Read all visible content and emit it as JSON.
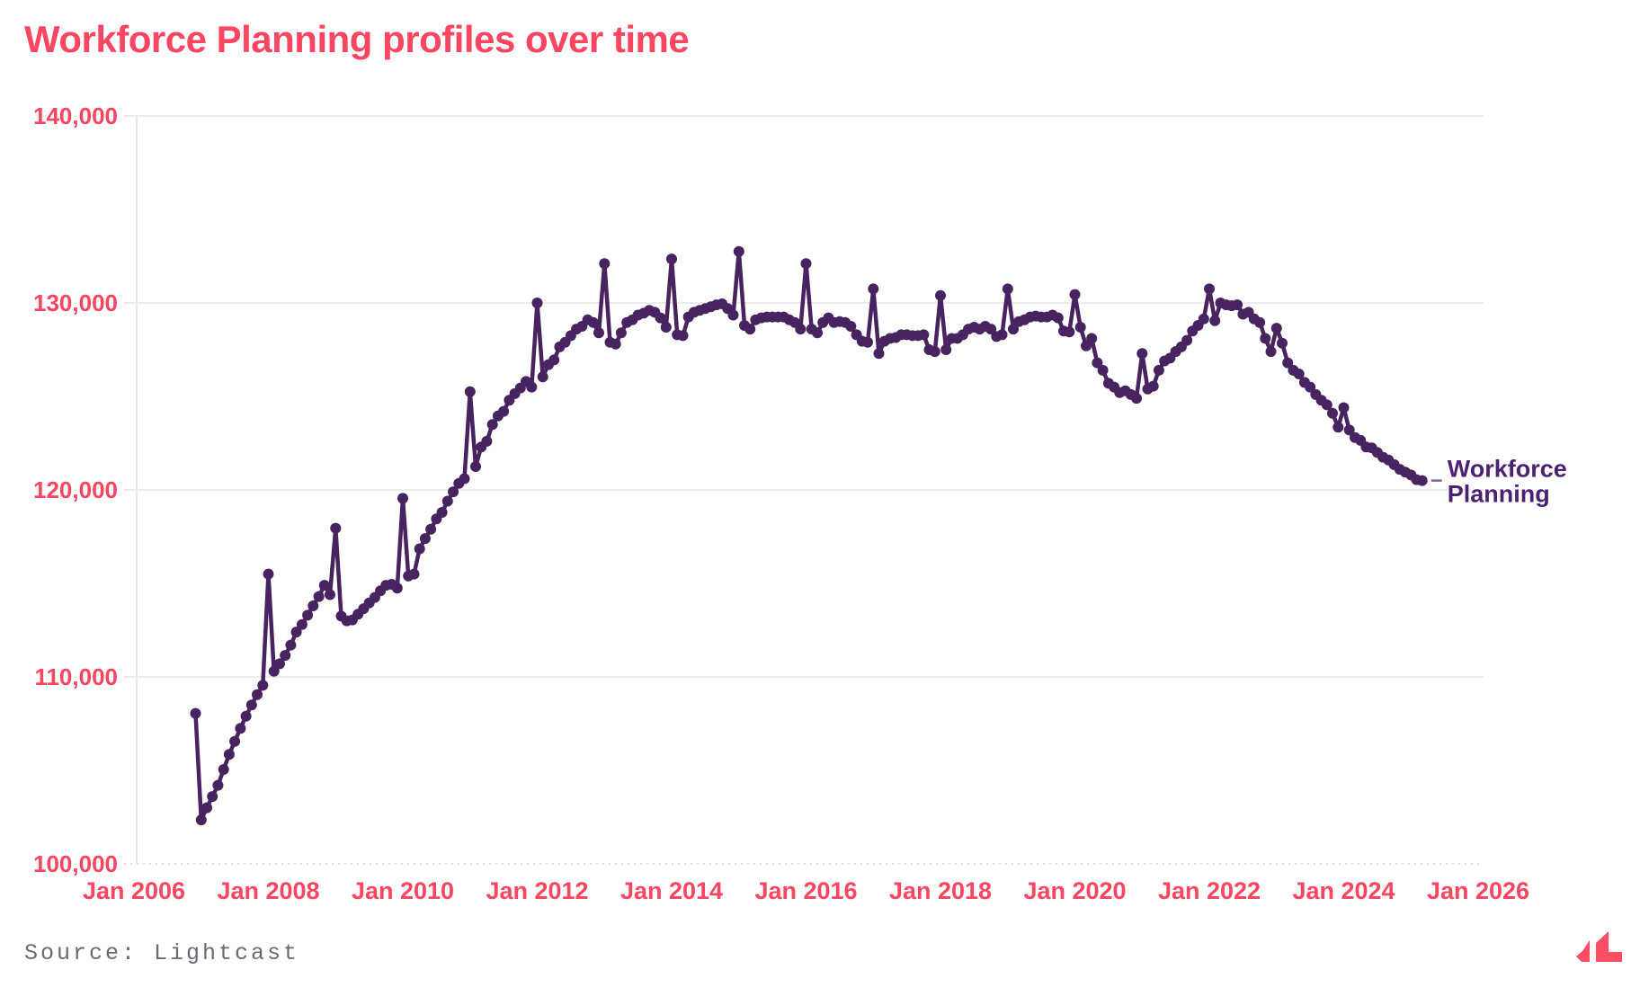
{
  "title": "Workforce Planning profiles over time",
  "source": "Source: Lightcast",
  "series_label": {
    "line1": "Workforce",
    "line2": "Planning"
  },
  "colors": {
    "background": "#FFFFFF",
    "title": "#FA4660",
    "axis_text": "#FA4660",
    "gridline": "#ECECEC",
    "gridline_dotted": "#E0E0E0",
    "axis_line": "#E8E8E8",
    "line": "#472460",
    "series_label": "#4B2173",
    "label_dash": "#7A6B8A",
    "source_text": "#6D6875",
    "logo": "#FB4D64"
  },
  "chart_data": {
    "type": "line",
    "title": "Workforce Planning profiles over time",
    "grid": "horizontal",
    "legend_position": "end-of-line-label",
    "x_axis": {
      "tick_labels": [
        "Jan 2006",
        "Jan 2008",
        "Jan 2010",
        "Jan 2012",
        "Jan 2014",
        "Jan 2016",
        "Jan 2018",
        "Jan 2020",
        "Jan 2022",
        "Jan 2024",
        "Jan 2026"
      ],
      "tick_years": [
        2006,
        2008,
        2010,
        2012,
        2014,
        2016,
        2018,
        2020,
        2022,
        2024,
        2026
      ]
    },
    "y_axis": {
      "tick_labels": [
        "140,000",
        "130,000",
        "120,000",
        "110,000",
        "100,000"
      ],
      "tick_values": [
        140000,
        130000,
        120000,
        110000,
        100000
      ],
      "range": [
        100000,
        140000
      ]
    },
    "point_format": [
      "date",
      "value"
    ],
    "series": [
      {
        "name": "Workforce Planning",
        "points": [
          [
            "2006-12",
            108050
          ],
          [
            "2007-01",
            102350
          ],
          [
            "2007-02",
            103000
          ],
          [
            "2007-03",
            103600
          ],
          [
            "2007-04",
            104200
          ],
          [
            "2007-05",
            105050
          ],
          [
            "2007-06",
            105850
          ],
          [
            "2007-07",
            106550
          ],
          [
            "2007-08",
            107250
          ],
          [
            "2007-09",
            107900
          ],
          [
            "2007-10",
            108500
          ],
          [
            "2007-11",
            109050
          ],
          [
            "2007-12",
            109550
          ],
          [
            "2008-01",
            115500
          ],
          [
            "2008-02",
            110300
          ],
          [
            "2008-03",
            110700
          ],
          [
            "2008-04",
            111150
          ],
          [
            "2008-05",
            111700
          ],
          [
            "2008-06",
            112400
          ],
          [
            "2008-07",
            112800
          ],
          [
            "2008-08",
            113300
          ],
          [
            "2008-09",
            113800
          ],
          [
            "2008-10",
            114300
          ],
          [
            "2008-11",
            114900
          ],
          [
            "2008-12",
            114400
          ],
          [
            "2009-01",
            117950
          ],
          [
            "2009-02",
            113250
          ],
          [
            "2009-03",
            113000
          ],
          [
            "2009-04",
            113050
          ],
          [
            "2009-05",
            113350
          ],
          [
            "2009-06",
            113650
          ],
          [
            "2009-07",
            113950
          ],
          [
            "2009-08",
            114250
          ],
          [
            "2009-09",
            114600
          ],
          [
            "2009-10",
            114900
          ],
          [
            "2009-11",
            114950
          ],
          [
            "2009-12",
            114750
          ],
          [
            "2010-01",
            119550
          ],
          [
            "2010-02",
            115400
          ],
          [
            "2010-03",
            115500
          ],
          [
            "2010-04",
            116850
          ],
          [
            "2010-05",
            117400
          ],
          [
            "2010-06",
            117900
          ],
          [
            "2010-07",
            118450
          ],
          [
            "2010-08",
            118800
          ],
          [
            "2010-09",
            119400
          ],
          [
            "2010-10",
            119900
          ],
          [
            "2010-11",
            120350
          ],
          [
            "2010-12",
            120600
          ],
          [
            "2011-01",
            125250
          ],
          [
            "2011-02",
            121250
          ],
          [
            "2011-03",
            122300
          ],
          [
            "2011-04",
            122600
          ],
          [
            "2011-05",
            123500
          ],
          [
            "2011-06",
            123950
          ],
          [
            "2011-07",
            124200
          ],
          [
            "2011-08",
            124800
          ],
          [
            "2011-09",
            125150
          ],
          [
            "2011-10",
            125450
          ],
          [
            "2011-11",
            125800
          ],
          [
            "2011-12",
            125500
          ],
          [
            "2012-01",
            130000
          ],
          [
            "2012-02",
            126050
          ],
          [
            "2012-03",
            126700
          ],
          [
            "2012-04",
            126950
          ],
          [
            "2012-05",
            127650
          ],
          [
            "2012-06",
            127900
          ],
          [
            "2012-07",
            128250
          ],
          [
            "2012-08",
            128600
          ],
          [
            "2012-09",
            128750
          ],
          [
            "2012-10",
            129100
          ],
          [
            "2012-11",
            128950
          ],
          [
            "2012-12",
            128400
          ],
          [
            "2013-01",
            132100
          ],
          [
            "2013-02",
            127900
          ],
          [
            "2013-03",
            127800
          ],
          [
            "2013-04",
            128400
          ],
          [
            "2013-05",
            128950
          ],
          [
            "2013-06",
            129100
          ],
          [
            "2013-07",
            129350
          ],
          [
            "2013-08",
            129450
          ],
          [
            "2013-09",
            129600
          ],
          [
            "2013-10",
            129500
          ],
          [
            "2013-11",
            129200
          ],
          [
            "2013-12",
            128700
          ],
          [
            "2014-01",
            132350
          ],
          [
            "2014-02",
            128300
          ],
          [
            "2014-03",
            128250
          ],
          [
            "2014-04",
            129250
          ],
          [
            "2014-05",
            129500
          ],
          [
            "2014-06",
            129600
          ],
          [
            "2014-07",
            129700
          ],
          [
            "2014-08",
            129800
          ],
          [
            "2014-09",
            129900
          ],
          [
            "2014-10",
            129950
          ],
          [
            "2014-11",
            129700
          ],
          [
            "2014-12",
            129350
          ],
          [
            "2015-01",
            132750
          ],
          [
            "2015-02",
            128800
          ],
          [
            "2015-03",
            128600
          ],
          [
            "2015-04",
            129100
          ],
          [
            "2015-05",
            129200
          ],
          [
            "2015-06",
            129250
          ],
          [
            "2015-07",
            129250
          ],
          [
            "2015-08",
            129250
          ],
          [
            "2015-09",
            129250
          ],
          [
            "2015-10",
            129100
          ],
          [
            "2015-11",
            128950
          ],
          [
            "2015-12",
            128600
          ],
          [
            "2016-01",
            132100
          ],
          [
            "2016-02",
            128600
          ],
          [
            "2016-03",
            128400
          ],
          [
            "2016-04",
            128950
          ],
          [
            "2016-05",
            129200
          ],
          [
            "2016-06",
            128950
          ],
          [
            "2016-07",
            129000
          ],
          [
            "2016-08",
            128950
          ],
          [
            "2016-09",
            128750
          ],
          [
            "2016-10",
            128300
          ],
          [
            "2016-11",
            127950
          ],
          [
            "2016-12",
            127900
          ],
          [
            "2017-01",
            130750
          ],
          [
            "2017-02",
            127300
          ],
          [
            "2017-03",
            127950
          ],
          [
            "2017-04",
            128100
          ],
          [
            "2017-05",
            128150
          ],
          [
            "2017-06",
            128300
          ],
          [
            "2017-07",
            128300
          ],
          [
            "2017-08",
            128250
          ],
          [
            "2017-09",
            128250
          ],
          [
            "2017-10",
            128300
          ],
          [
            "2017-11",
            127500
          ],
          [
            "2017-12",
            127400
          ],
          [
            "2018-01",
            130400
          ],
          [
            "2018-02",
            127500
          ],
          [
            "2018-03",
            128100
          ],
          [
            "2018-04",
            128100
          ],
          [
            "2018-05",
            128300
          ],
          [
            "2018-06",
            128600
          ],
          [
            "2018-07",
            128700
          ],
          [
            "2018-08",
            128600
          ],
          [
            "2018-09",
            128750
          ],
          [
            "2018-10",
            128600
          ],
          [
            "2018-11",
            128200
          ],
          [
            "2018-12",
            128300
          ],
          [
            "2019-01",
            130750
          ],
          [
            "2019-02",
            128600
          ],
          [
            "2019-03",
            129000
          ],
          [
            "2019-04",
            129100
          ],
          [
            "2019-05",
            129250
          ],
          [
            "2019-06",
            129300
          ],
          [
            "2019-07",
            129250
          ],
          [
            "2019-08",
            129250
          ],
          [
            "2019-09",
            129350
          ],
          [
            "2019-10",
            129200
          ],
          [
            "2019-11",
            128500
          ],
          [
            "2019-12",
            128450
          ],
          [
            "2020-01",
            130450
          ],
          [
            "2020-02",
            128700
          ],
          [
            "2020-03",
            127700
          ],
          [
            "2020-04",
            128100
          ],
          [
            "2020-05",
            126800
          ],
          [
            "2020-06",
            126400
          ],
          [
            "2020-07",
            125700
          ],
          [
            "2020-08",
            125500
          ],
          [
            "2020-09",
            125200
          ],
          [
            "2020-10",
            125300
          ],
          [
            "2020-11",
            125100
          ],
          [
            "2020-12",
            124900
          ],
          [
            "2021-01",
            127300
          ],
          [
            "2021-02",
            125400
          ],
          [
            "2021-03",
            125550
          ],
          [
            "2021-04",
            126400
          ],
          [
            "2021-05",
            126900
          ],
          [
            "2021-06",
            127050
          ],
          [
            "2021-07",
            127400
          ],
          [
            "2021-08",
            127650
          ],
          [
            "2021-09",
            128000
          ],
          [
            "2021-10",
            128500
          ],
          [
            "2021-11",
            128800
          ],
          [
            "2021-12",
            129150
          ],
          [
            "2022-01",
            130750
          ],
          [
            "2022-02",
            129050
          ],
          [
            "2022-03",
            130000
          ],
          [
            "2022-04",
            129900
          ],
          [
            "2022-05",
            129850
          ],
          [
            "2022-06",
            129900
          ],
          [
            "2022-07",
            129400
          ],
          [
            "2022-08",
            129500
          ],
          [
            "2022-09",
            129150
          ],
          [
            "2022-10",
            128950
          ],
          [
            "2022-11",
            128100
          ],
          [
            "2022-12",
            127400
          ],
          [
            "2023-01",
            128650
          ],
          [
            "2023-02",
            127850
          ],
          [
            "2023-03",
            126800
          ],
          [
            "2023-04",
            126400
          ],
          [
            "2023-05",
            126200
          ],
          [
            "2023-06",
            125750
          ],
          [
            "2023-07",
            125500
          ],
          [
            "2023-08",
            125100
          ],
          [
            "2023-09",
            124800
          ],
          [
            "2023-10",
            124550
          ],
          [
            "2023-11",
            124100
          ],
          [
            "2023-12",
            123350
          ],
          [
            "2024-01",
            124400
          ],
          [
            "2024-02",
            123200
          ],
          [
            "2024-03",
            122800
          ],
          [
            "2024-04",
            122650
          ],
          [
            "2024-05",
            122300
          ],
          [
            "2024-06",
            122250
          ],
          [
            "2024-07",
            122000
          ],
          [
            "2024-08",
            121750
          ],
          [
            "2024-09",
            121600
          ],
          [
            "2024-10",
            121350
          ],
          [
            "2024-11",
            121100
          ],
          [
            "2024-12",
            120950
          ],
          [
            "2025-01",
            120800
          ],
          [
            "2025-02",
            120550
          ],
          [
            "2025-03",
            120500
          ]
        ]
      }
    ]
  }
}
